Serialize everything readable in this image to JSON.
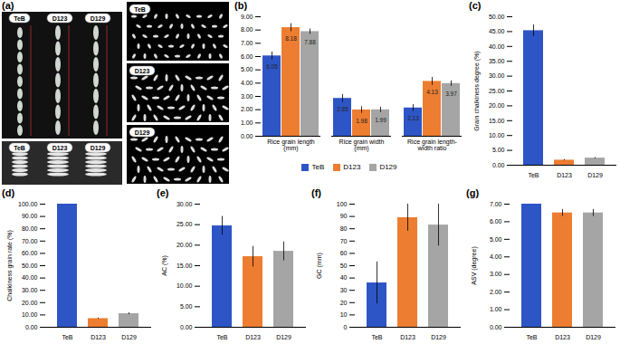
{
  "chart_data": [
    {
      "type": "bar",
      "title": "(b)",
      "categories": [
        "Rice grain length (mm)",
        "Rice grain width (mm)",
        "Rice grain length-width ratio"
      ],
      "series": [
        {
          "name": "TeB",
          "color": "#2E55C6",
          "values": [
            6.05,
            2.85,
            2.13
          ],
          "errors": [
            0.3,
            0.3,
            0.25
          ]
        },
        {
          "name": "D123",
          "color": "#ED7D31",
          "values": [
            8.18,
            1.98,
            4.13
          ],
          "errors": [
            0.3,
            0.25,
            0.3
          ]
        },
        {
          "name": "D129",
          "color": "#A5A5A5",
          "values": [
            7.88,
            1.99,
            3.97
          ],
          "errors": [
            0.2,
            0.2,
            0.2
          ]
        }
      ],
      "ylim": [
        0,
        9
      ],
      "yticks": [
        {
          "value": 0,
          "label": "0.00"
        },
        {
          "value": 1,
          "label": "1.00"
        },
        {
          "value": 2,
          "label": "2.00"
        },
        {
          "value": 3,
          "label": "3.00"
        },
        {
          "value": 4,
          "label": "4.00"
        },
        {
          "value": 5,
          "label": "5.00"
        },
        {
          "value": 6,
          "label": "6.00"
        },
        {
          "value": 7,
          "label": "7.00"
        },
        {
          "value": 8,
          "label": "8.00"
        },
        {
          "value": 9,
          "label": "9.00"
        }
      ],
      "data_labels": true,
      "legend": "bottom",
      "grid": false
    },
    {
      "type": "bar",
      "title": "(c)",
      "y_label": "Grain chalkiness degree (%)",
      "categories": [
        "TeB",
        "D123",
        "D129"
      ],
      "values": [
        45.3,
        1.7,
        2.4
      ],
      "errors": [
        2.0,
        0.2,
        0.2
      ],
      "colors": [
        "#2E55C6",
        "#ED7D31",
        "#A5A5A5"
      ],
      "ylim": [
        0,
        50
      ],
      "yticks": [
        {
          "value": 0,
          "label": "0.00"
        },
        {
          "value": 5,
          "label": "5.00"
        },
        {
          "value": 10,
          "label": "10.00"
        },
        {
          "value": 15,
          "label": "15.00"
        },
        {
          "value": 20,
          "label": "20.00"
        },
        {
          "value": 25,
          "label": "25.00"
        },
        {
          "value": 30,
          "label": "30.00"
        },
        {
          "value": 35,
          "label": "35.00"
        },
        {
          "value": 40,
          "label": "40.00"
        },
        {
          "value": 45,
          "label": "45.00"
        },
        {
          "value": 50,
          "label": "50.00"
        }
      ],
      "grid": false
    },
    {
      "type": "bar",
      "title": "(d)",
      "y_label": "Chalkiness grain rate (%)",
      "categories": [
        "TeB",
        "D123",
        "D129"
      ],
      "values": [
        100,
        7.0,
        11.0
      ],
      "errors": [
        0,
        0.5,
        0.7
      ],
      "colors": [
        "#2E55C6",
        "#ED7D31",
        "#A5A5A5"
      ],
      "ylim": [
        0,
        100
      ],
      "yticks": [
        {
          "value": 0,
          "label": "0.00"
        },
        {
          "value": 10,
          "label": "10.00"
        },
        {
          "value": 20,
          "label": "20.00"
        },
        {
          "value": 30,
          "label": "30.00"
        },
        {
          "value": 40,
          "label": "40.00"
        },
        {
          "value": 50,
          "label": "50.00"
        },
        {
          "value": 60,
          "label": "60.00"
        },
        {
          "value": 70,
          "label": "70.00"
        },
        {
          "value": 80,
          "label": "80.00"
        },
        {
          "value": 90,
          "label": "90.00"
        },
        {
          "value": 100,
          "label": "100.00"
        }
      ],
      "grid": false
    },
    {
      "type": "bar",
      "title": "(e)",
      "y_label": "AC (%)",
      "categories": [
        "TeB",
        "D123",
        "D129"
      ],
      "values": [
        24.7,
        17.2,
        18.5
      ],
      "errors": [
        2.3,
        2.5,
        2.3
      ],
      "colors": [
        "#2E55C6",
        "#ED7D31",
        "#A5A5A5"
      ],
      "ylim": [
        0,
        30
      ],
      "yticks": [
        {
          "value": 0,
          "label": "0.00"
        },
        {
          "value": 5,
          "label": "5.00"
        },
        {
          "value": 10,
          "label": "10.00"
        },
        {
          "value": 15,
          "label": "15.00"
        },
        {
          "value": 20,
          "label": "20.00"
        },
        {
          "value": 25,
          "label": "25.00"
        },
        {
          "value": 30,
          "label": "30.00"
        }
      ],
      "grid": false
    },
    {
      "type": "bar",
      "title": "(f)",
      "y_label": "GC (mm)",
      "categories": [
        "TeB",
        "D123",
        "D129"
      ],
      "values": [
        36,
        89,
        83
      ],
      "errors": [
        17,
        11,
        17
      ],
      "colors": [
        "#2E55C6",
        "#ED7D31",
        "#A5A5A5"
      ],
      "ylim": [
        0,
        100
      ],
      "yticks": [
        0,
        10,
        20,
        30,
        40,
        50,
        60,
        70,
        80,
        90,
        100
      ],
      "grid": false
    },
    {
      "type": "bar",
      "title": "(g)",
      "y_label": "ASV (degree)",
      "categories": [
        "TeB",
        "D123",
        "D129"
      ],
      "values": [
        7.0,
        6.5,
        6.5
      ],
      "errors": [
        0,
        0.2,
        0.2
      ],
      "colors": [
        "#2E55C6",
        "#ED7D31",
        "#A5A5A5"
      ],
      "ylim": [
        0,
        7
      ],
      "yticks": [
        {
          "value": 0,
          "label": "0.00"
        },
        {
          "value": 1,
          "label": "1.00"
        },
        {
          "value": 2,
          "label": "2.00"
        },
        {
          "value": 3,
          "label": "3.00"
        },
        {
          "value": 4,
          "label": "4.00"
        },
        {
          "value": 5,
          "label": "5.00"
        },
        {
          "value": 6,
          "label": "6.00"
        },
        {
          "value": 7,
          "label": "7.00"
        }
      ],
      "grid": false
    }
  ],
  "panel_a": {
    "title": "(a)",
    "top_left_labels": [
      "TeB",
      "D123",
      "D129"
    ],
    "bottom_left_labels": [
      "TeB",
      "D123",
      "D129"
    ],
    "right_labels": [
      "TeB",
      "D123",
      "D129"
    ]
  }
}
